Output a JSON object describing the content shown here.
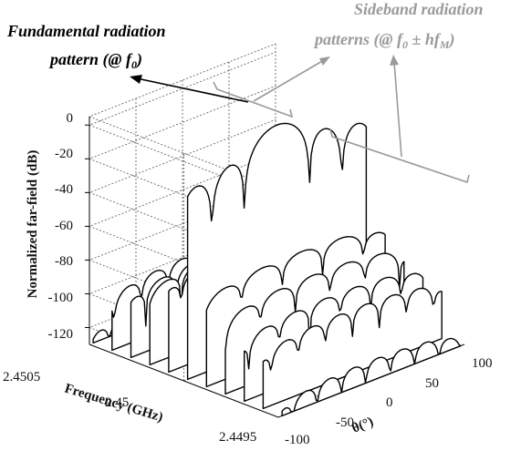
{
  "chart_data": {
    "type": "area",
    "title": "",
    "zlabel": "Normalized far-field (dB)",
    "xlabel": "Frequency (GHz)",
    "ylabel": "θ(°)",
    "z_ticks": [
      "0",
      "-20",
      "-40",
      "-60",
      "-80",
      "-100",
      "-120"
    ],
    "freq_ticks": [
      "2.4505",
      "2.45",
      "2.4495"
    ],
    "theta_ticks": [
      "-100",
      "-50",
      "0",
      "50",
      "100"
    ],
    "zlim": [
      -130,
      5
    ],
    "theta_range": [
      -100,
      100
    ],
    "freq_range": [
      2.4495,
      2.4505
    ],
    "series_count": 11,
    "fundamental_index": 5,
    "series_peaks_db": [
      -118,
      -92,
      -88,
      -80,
      -72,
      0,
      -72,
      -80,
      -88,
      -92,
      -118
    ],
    "annotations": {
      "fundamental_line1": "Fundamental radiation",
      "fundamental_line2": "pattern (@ f",
      "fundamental_sub": "0",
      "fundamental_close": ")",
      "sideband_line1": "Sideband radiation",
      "sideband_line2": "patterns (@ f",
      "sideband_sub0": "0",
      "sideband_pm": " ± hf",
      "sideband_subM": "M",
      "sideband_close": ")"
    },
    "grid": true
  }
}
